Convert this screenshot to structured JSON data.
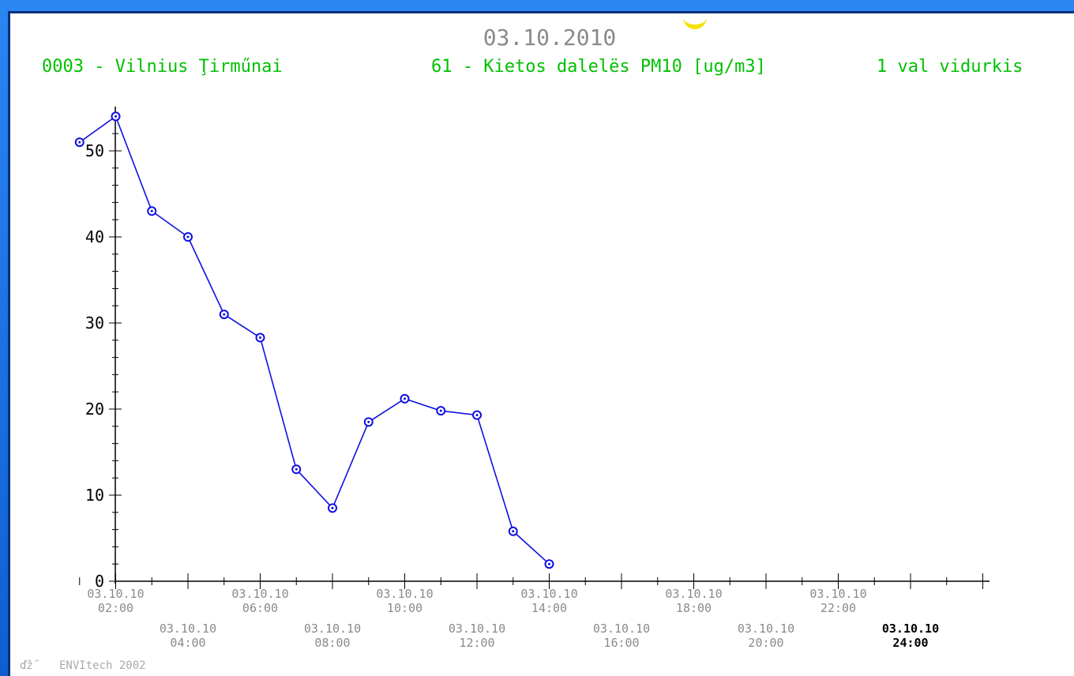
{
  "header": {
    "date": "03.10.2010",
    "station": "0003 - Vilnius Ţirműnai",
    "parameter": "61 - Kietos dalelës PM10 [ug/m3]",
    "averaging": "1 val vidurkis"
  },
  "footer": {
    "credit_glyph": "ďž˝",
    "credit_text": "ENVItech 2002"
  },
  "colors": {
    "line": "#1010e0",
    "header_text": "#00c000",
    "frame": "#1565c8",
    "axis": "#000000"
  },
  "chart_data": {
    "type": "line",
    "title": "03.10.2010",
    "xlabel": "",
    "ylabel": "",
    "ylim": [
      0,
      55
    ],
    "yticks": [
      0,
      10,
      20,
      30,
      40,
      50
    ],
    "grid": false,
    "x_hours": [
      1,
      2,
      3,
      4,
      5,
      6,
      7,
      8,
      9,
      10,
      11,
      12,
      13,
      14
    ],
    "series": [
      {
        "values": [
          51,
          54,
          43,
          40,
          31,
          28.3,
          13,
          8.5,
          18.5,
          21.2,
          19.8,
          19.3,
          5.8,
          2
        ]
      }
    ],
    "xticks": [
      {
        "hour": 2,
        "date": "03.10.10",
        "time": "02:00",
        "row": 0,
        "bold": false
      },
      {
        "hour": 4,
        "date": "03.10.10",
        "time": "04:00",
        "row": 1,
        "bold": false
      },
      {
        "hour": 6,
        "date": "03.10.10",
        "time": "06:00",
        "row": 0,
        "bold": false
      },
      {
        "hour": 8,
        "date": "03.10.10",
        "time": "08:00",
        "row": 1,
        "bold": false
      },
      {
        "hour": 10,
        "date": "03.10.10",
        "time": "10:00",
        "row": 0,
        "bold": false
      },
      {
        "hour": 12,
        "date": "03.10.10",
        "time": "12:00",
        "row": 1,
        "bold": false
      },
      {
        "hour": 14,
        "date": "03.10.10",
        "time": "14:00",
        "row": 0,
        "bold": false
      },
      {
        "hour": 16,
        "date": "03.10.10",
        "time": "16:00",
        "row": 1,
        "bold": false
      },
      {
        "hour": 18,
        "date": "03.10.10",
        "time": "18:00",
        "row": 0,
        "bold": false
      },
      {
        "hour": 20,
        "date": "03.10.10",
        "time": "20:00",
        "row": 1,
        "bold": false
      },
      {
        "hour": 22,
        "date": "03.10.10",
        "time": "22:00",
        "row": 0,
        "bold": false
      },
      {
        "hour": 24,
        "date": "03.10.10",
        "time": "24:00",
        "row": 1,
        "bold": true
      }
    ]
  }
}
